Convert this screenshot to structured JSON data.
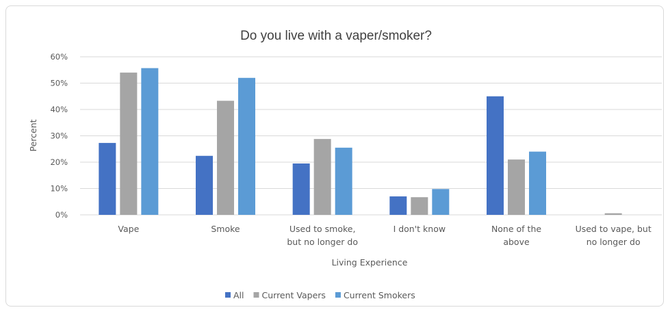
{
  "chart_data": {
    "type": "bar",
    "title": "Do you live with a vaper/smoker?",
    "xlabel": "Living Experience",
    "ylabel": "Percent",
    "ylim": [
      0,
      60
    ],
    "y_ticks": [
      "0%",
      "10%",
      "20%",
      "30%",
      "40%",
      "50%",
      "60%"
    ],
    "y_tick_values": [
      0,
      10,
      20,
      30,
      40,
      50,
      60
    ],
    "grid": true,
    "legend_position": "bottom",
    "categories": [
      [
        "Vape"
      ],
      [
        "Smoke"
      ],
      [
        "Used to smoke,",
        "but no longer do"
      ],
      [
        "I don't know"
      ],
      [
        "None of the",
        "above"
      ],
      [
        "Used to vape, but",
        "no longer do"
      ]
    ],
    "series": [
      {
        "name": "All",
        "color": "#4472C4",
        "values": [
          27.3,
          22.4,
          19.5,
          7.0,
          45.0,
          0
        ]
      },
      {
        "name": "Current Vapers",
        "color": "#A5A5A5",
        "values": [
          54.0,
          43.3,
          28.8,
          6.7,
          21.0,
          0.6
        ]
      },
      {
        "name": "Current Smokers",
        "color": "#5B9BD5",
        "values": [
          55.7,
          52.0,
          25.5,
          9.8,
          24.0,
          0
        ]
      }
    ]
  }
}
